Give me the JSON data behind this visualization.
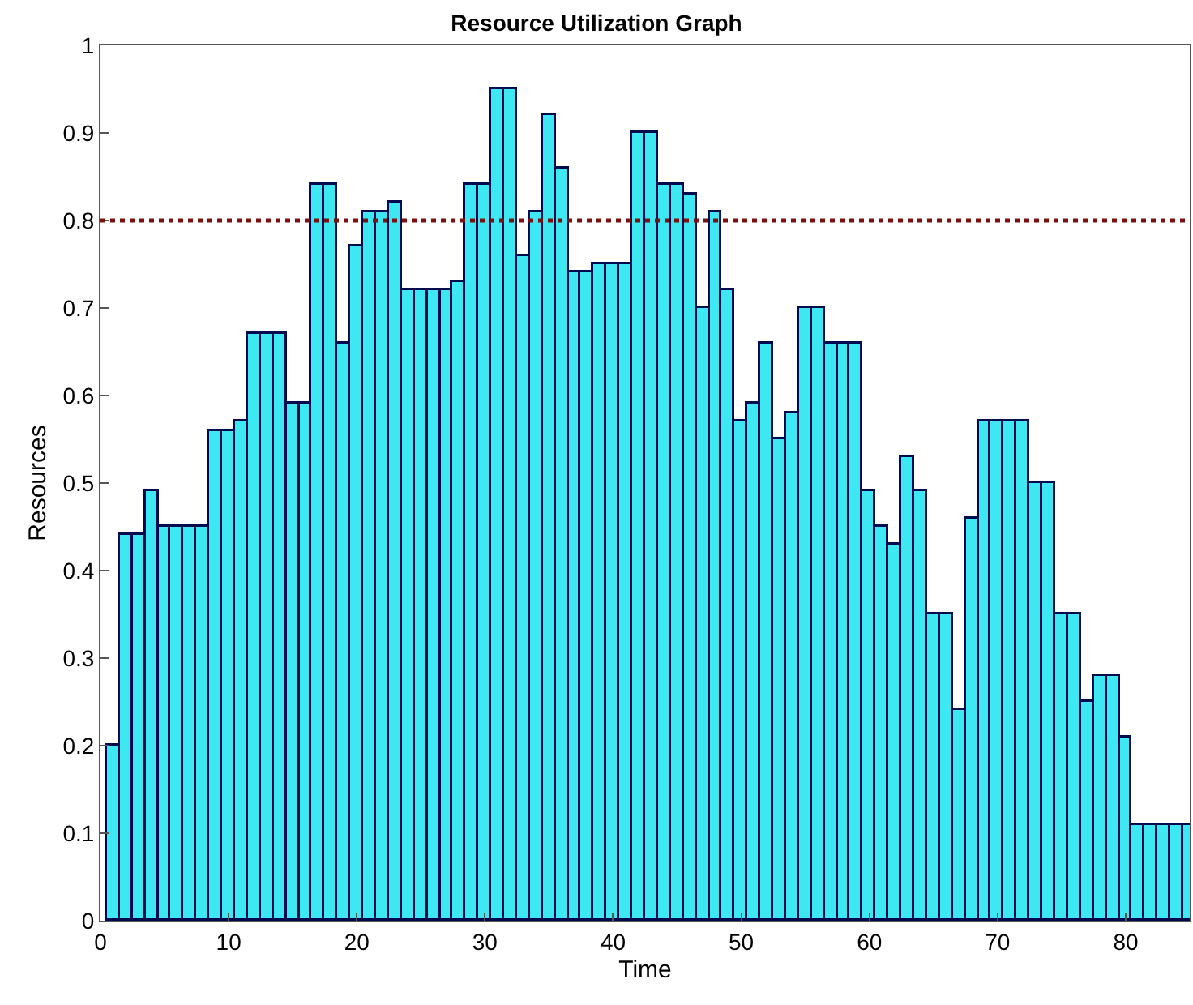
{
  "chart_data": {
    "type": "bar",
    "title": "Resource Utilization Graph",
    "xlabel": "Time",
    "ylabel": "Resources",
    "x": [
      1,
      2,
      3,
      4,
      5,
      6,
      7,
      8,
      9,
      10,
      11,
      12,
      13,
      14,
      15,
      16,
      17,
      18,
      19,
      20,
      21,
      22,
      23,
      24,
      25,
      26,
      27,
      28,
      29,
      30,
      31,
      32,
      33,
      34,
      35,
      36,
      37,
      38,
      39,
      40,
      41,
      42,
      43,
      44,
      45,
      46,
      47,
      48,
      49,
      50,
      51,
      52,
      53,
      54,
      55,
      56,
      57,
      58,
      59,
      60,
      61,
      62,
      63,
      64,
      65,
      66,
      67,
      68,
      69,
      70,
      71,
      72,
      73,
      74,
      75,
      76,
      77,
      78,
      79,
      80,
      81,
      82,
      83,
      84,
      85
    ],
    "values": [
      0.2,
      0.44,
      0.44,
      0.49,
      0.45,
      0.45,
      0.45,
      0.45,
      0.56,
      0.56,
      0.57,
      0.67,
      0.67,
      0.67,
      0.59,
      0.59,
      0.84,
      0.84,
      0.66,
      0.77,
      0.81,
      0.81,
      0.82,
      0.72,
      0.72,
      0.72,
      0.72,
      0.73,
      0.84,
      0.84,
      0.95,
      0.95,
      0.76,
      0.81,
      0.92,
      0.86,
      0.74,
      0.74,
      0.75,
      0.75,
      0.75,
      0.9,
      0.9,
      0.84,
      0.84,
      0.83,
      0.7,
      0.81,
      0.72,
      0.57,
      0.59,
      0.66,
      0.55,
      0.58,
      0.7,
      0.7,
      0.66,
      0.66,
      0.66,
      0.49,
      0.45,
      0.43,
      0.53,
      0.49,
      0.35,
      0.35,
      0.24,
      0.46,
      0.57,
      0.57,
      0.57,
      0.57,
      0.5,
      0.5,
      0.35,
      0.35,
      0.25,
      0.28,
      0.28,
      0.21,
      0.11,
      0.11,
      0.11,
      0.11,
      0.11
    ],
    "color": "#3ee8f2",
    "xlim": [
      0,
      85
    ],
    "xticks": [
      0,
      10,
      20,
      30,
      40,
      50,
      60,
      70,
      80
    ],
    "ylim": [
      0,
      1
    ],
    "yticks": [
      0,
      0.1,
      0.2,
      0.3,
      0.4,
      0.5,
      0.6,
      0.7,
      0.8,
      0.9,
      1
    ],
    "ref_lines": [
      {
        "axis": "y",
        "value": 0.8,
        "color": "#7a1010",
        "line_style": "dotted"
      }
    ]
  }
}
